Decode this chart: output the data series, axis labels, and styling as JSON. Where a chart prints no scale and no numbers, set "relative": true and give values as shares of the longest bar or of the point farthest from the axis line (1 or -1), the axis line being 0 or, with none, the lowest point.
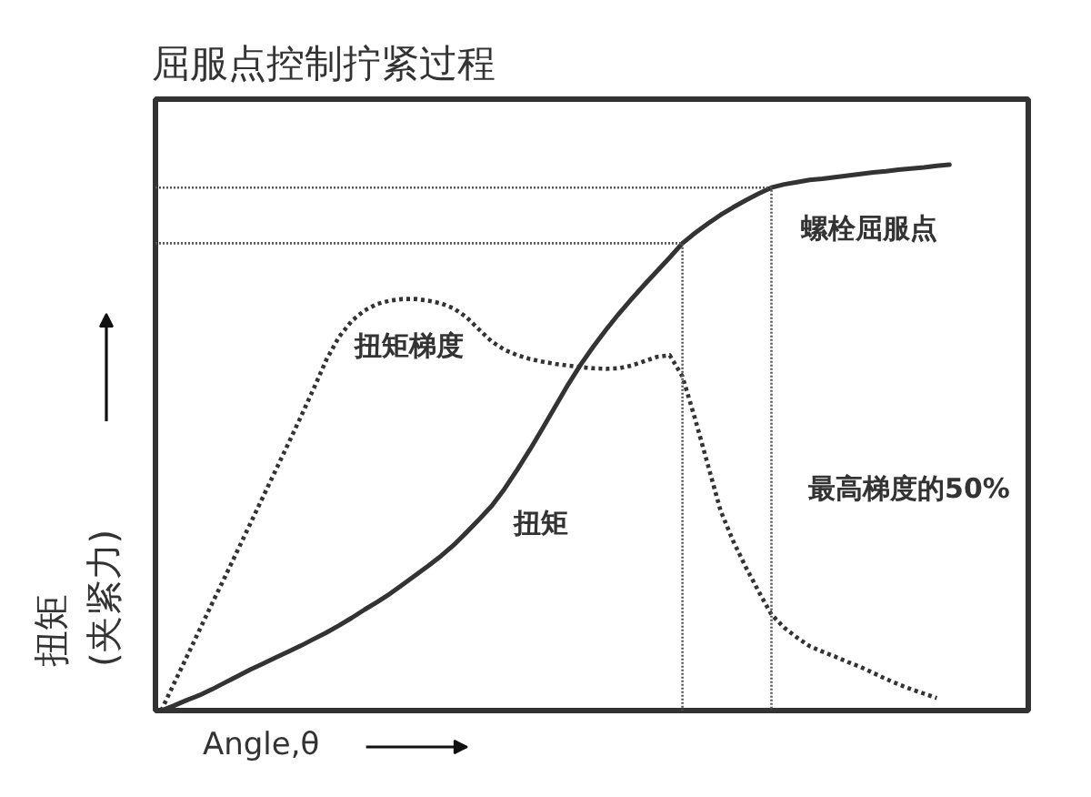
{
  "chart_data": {
    "type": "line",
    "title": "屈服点控制拧紧过程",
    "xlabel": "Angle,θ",
    "ylabel": "扭矩\n(夹紧力)",
    "relative": true,
    "categories": [
      null,
      null,
      null,
      null,
      null,
      null,
      null,
      null,
      null,
      null,
      null,
      null,
      null,
      null,
      null,
      null,
      null,
      null,
      null,
      null,
      null,
      null,
      null,
      null,
      null,
      null,
      null,
      null,
      null,
      null,
      null,
      null,
      null,
      null,
      null,
      null,
      null,
      null,
      null,
      null,
      null,
      null,
      null,
      null,
      null,
      null,
      null,
      null,
      null,
      null,
      null,
      null,
      null,
      null,
      null,
      null,
      null,
      null,
      null,
      null,
      null,
      null,
      null
    ],
    "series": [
      {
        "name": "扭矩",
        "color": "#333333",
        "line_style": "solid",
        "values": [
          0,
          0.009,
          0.019,
          0.028,
          0.039,
          0.051,
          0.063,
          0.075,
          0.086,
          0.097,
          0.108,
          0.119,
          0.131,
          0.143,
          0.156,
          0.17,
          0.185,
          0.199,
          0.214,
          0.231,
          0.248,
          0.265,
          0.283,
          0.303,
          0.326,
          0.35,
          0.375,
          0.406,
          0.441,
          0.478,
          0.517,
          0.557,
          0.597,
          0.634,
          0.667,
          0.698,
          0.727,
          0.754,
          0.78,
          0.805,
          0.83,
          0.856,
          0.875,
          0.892,
          0.908,
          0.922,
          0.935,
          0.947,
          0.958,
          0.964,
          0.968,
          0.972,
          0.974,
          0.977,
          0.98,
          0.983,
          0.986,
          0.988,
          0.991,
          0.993,
          0.995,
          0.998,
          1
        ]
      },
      {
        "name": "扭矩梯度",
        "color": "#333333",
        "line_style": "dotted",
        "values": [
          0,
          0.049,
          0.098,
          0.147,
          0.196,
          0.244,
          0.293,
          0.342,
          0.391,
          0.44,
          0.489,
          0.539,
          0.59,
          0.643,
          0.685,
          0.714,
          0.733,
          0.745,
          0.751,
          0.754,
          0.754,
          0.751,
          0.746,
          0.737,
          0.721,
          0.698,
          0.676,
          0.661,
          0.651,
          0.644,
          0.639,
          0.635,
          0.632,
          0.629,
          0.627,
          0.626,
          0.627,
          0.632,
          0.64,
          0.648,
          0.651,
          0.612,
          0.534,
          0.45,
          0.366,
          0.31,
          0.262,
          0.218,
          0.176,
          0.152,
          0.134,
          0.118,
          0.108,
          0.099,
          0.089,
          0.08,
          0.069,
          0.058,
          0.048,
          0.039,
          0.031,
          0.023,
          null
        ]
      }
    ],
    "ref_lines": [
      {
        "axis": "y",
        "value": 0.958,
        "color": "#555555",
        "line_style": "dotted"
      },
      {
        "axis": "y",
        "value": 0.856,
        "color": "#555555",
        "line_style": "dotted"
      }
    ],
    "annotations": [
      "螺栓屈服点",
      "最高梯度的50%"
    ]
  }
}
